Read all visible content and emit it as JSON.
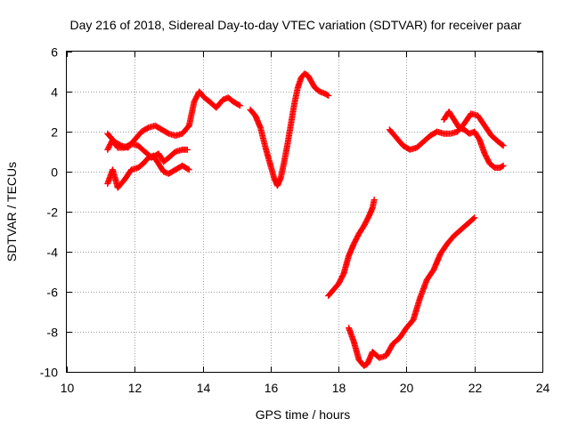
{
  "chart_data": {
    "type": "scatter",
    "title": "Day 216 of 2018, Sidereal Day-to-day VTEC variation (SDTVAR) for receiver paar",
    "xlabel": "GPS time / hours",
    "ylabel": "SDTVAR / TECUs",
    "xlim": [
      10,
      24
    ],
    "ylim": [
      -10,
      6
    ],
    "xticks": [
      10,
      12,
      14,
      16,
      18,
      20,
      22,
      24
    ],
    "yticks": [
      -10,
      -8,
      -6,
      -4,
      -2,
      0,
      2,
      4,
      6
    ],
    "grid": true,
    "legend": "none",
    "marker": "+",
    "color": "#ff0000",
    "series": [
      {
        "x": [
          11.2,
          11.4,
          11.6,
          11.8,
          12.0,
          12.2,
          12.4,
          12.6,
          12.8,
          13.0,
          13.2,
          13.4,
          13.6
        ],
        "y": [
          1.9,
          1.5,
          1.3,
          1.2,
          1.6,
          2.0,
          2.2,
          2.3,
          2.1,
          1.9,
          1.8,
          1.9,
          2.3
        ]
      },
      {
        "x": [
          13.6,
          13.75,
          13.9,
          14.05,
          14.2,
          14.4,
          14.6,
          14.75,
          14.9,
          15.0,
          15.1
        ],
        "y": [
          2.3,
          3.5,
          4.0,
          3.7,
          3.5,
          3.2,
          3.6,
          3.7,
          3.5,
          3.4,
          3.3
        ]
      },
      {
        "x": [
          15.4,
          15.55,
          15.7,
          15.85,
          16.0,
          16.1,
          16.2,
          16.3,
          16.4,
          16.5,
          16.6,
          16.7,
          16.8,
          16.9,
          17.0,
          17.1,
          17.2,
          17.3,
          17.45,
          17.6,
          17.7
        ],
        "y": [
          3.1,
          2.8,
          2.2,
          1.2,
          0.3,
          -0.3,
          -0.7,
          -0.3,
          0.5,
          1.4,
          2.4,
          3.4,
          4.2,
          4.7,
          4.9,
          4.8,
          4.5,
          4.2,
          4.0,
          3.9,
          3.8
        ]
      },
      {
        "x": [
          11.2,
          11.35,
          11.5,
          11.7,
          11.9,
          12.1,
          12.3,
          12.5,
          12.7,
          12.85,
          13.0,
          13.2,
          13.4,
          13.55
        ],
        "y": [
          1.1,
          1.6,
          1.2,
          1.2,
          1.4,
          1.3,
          1.0,
          0.7,
          0.9,
          0.5,
          0.7,
          1.0,
          1.1,
          1.1
        ]
      },
      {
        "x": [
          11.2,
          11.35,
          11.5,
          11.7,
          11.9,
          12.1,
          12.25,
          12.4,
          12.55,
          12.7,
          12.85,
          13.0,
          13.2,
          13.4,
          13.6
        ],
        "y": [
          -0.6,
          0.1,
          -0.8,
          -0.4,
          0.1,
          0.2,
          0.4,
          0.7,
          0.8,
          0.4,
          0.0,
          -0.1,
          0.1,
          0.3,
          0.1
        ]
      },
      {
        "x": [
          17.7,
          17.85,
          18.0,
          18.15,
          18.3,
          18.45,
          18.6,
          18.75,
          18.9,
          19.0,
          19.05
        ],
        "y": [
          -6.2,
          -5.9,
          -5.6,
          -5.1,
          -4.2,
          -3.6,
          -3.1,
          -2.7,
          -2.2,
          -1.8,
          -1.4
        ]
      },
      {
        "x": [
          18.3,
          18.45,
          18.6,
          18.75,
          18.85,
          19.0,
          19.2,
          19.4,
          19.6,
          19.8,
          20.0,
          20.2,
          20.4,
          20.6,
          20.8,
          21.0,
          21.2,
          21.4,
          21.6,
          21.8,
          22.0
        ],
        "y": [
          -7.8,
          -8.5,
          -9.4,
          -9.7,
          -9.6,
          -9.0,
          -9.3,
          -9.2,
          -8.6,
          -8.3,
          -7.8,
          -7.4,
          -6.3,
          -5.4,
          -4.9,
          -4.1,
          -3.6,
          -3.2,
          -2.9,
          -2.6,
          -2.3
        ]
      },
      {
        "x": [
          19.5,
          19.7,
          19.9,
          20.1,
          20.3,
          20.5,
          20.7,
          20.9,
          21.1,
          21.3,
          21.5,
          21.7,
          21.9,
          22.1,
          22.3,
          22.5,
          22.7,
          22.85
        ],
        "y": [
          2.1,
          1.7,
          1.3,
          1.1,
          1.2,
          1.5,
          1.8,
          2.0,
          1.9,
          1.9,
          2.0,
          2.4,
          2.9,
          2.8,
          2.3,
          1.8,
          1.5,
          1.3
        ]
      },
      {
        "x": [
          21.1,
          21.25,
          21.4,
          21.55,
          21.7,
          21.85,
          22.0,
          22.15,
          22.3,
          22.45,
          22.6,
          22.75,
          22.85
        ],
        "y": [
          2.6,
          3.0,
          2.6,
          2.2,
          2.1,
          1.9,
          2.0,
          1.6,
          0.9,
          0.4,
          0.2,
          0.2,
          0.3
        ]
      }
    ]
  }
}
